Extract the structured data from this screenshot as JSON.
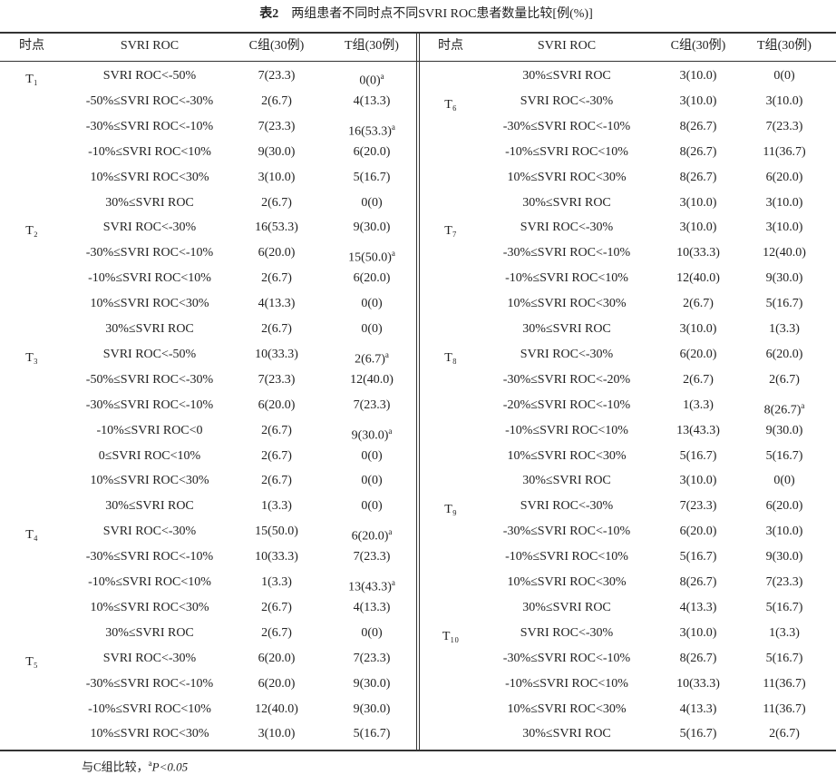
{
  "title": {
    "label": "表2",
    "text": "两组患者不同时点不同SVRI ROC患者数量比较[例(%)]"
  },
  "header": [
    "时点",
    "SVRI ROC",
    "C组(30例)",
    "T组(30例)"
  ],
  "left": [
    {
      "time": "T₁",
      "rows": [
        [
          "SVRI ROC<-50%",
          "7(23.3)",
          "0(0)",
          "a"
        ],
        [
          "-50%≤SVRI ROC<-30%",
          "2(6.7)",
          "4(13.3)"
        ],
        [
          "-30%≤SVRI ROC<-10%",
          "7(23.3)",
          "16(53.3)",
          "a"
        ],
        [
          "-10%≤SVRI ROC<10%",
          "9(30.0)",
          "6(20.0)"
        ],
        [
          "10%≤SVRI ROC<30%",
          "3(10.0)",
          "5(16.7)"
        ],
        [
          "30%≤SVRI ROC",
          "2(6.7)",
          "0(0)"
        ]
      ]
    },
    {
      "time": "T₂",
      "rows": [
        [
          "SVRI ROC<-30%",
          "16(53.3)",
          "9(30.0)"
        ],
        [
          "-30%≤SVRI ROC<-10%",
          "6(20.0)",
          "15(50.0)",
          "a"
        ],
        [
          "-10%≤SVRI ROC<10%",
          "2(6.7)",
          "6(20.0)"
        ],
        [
          "10%≤SVRI ROC<30%",
          "4(13.3)",
          "0(0)"
        ],
        [
          "30%≤SVRI ROC",
          "2(6.7)",
          "0(0)"
        ]
      ]
    },
    {
      "time": "T₃",
      "rows": [
        [
          "SVRI ROC<-50%",
          "10(33.3)",
          "2(6.7)",
          "a"
        ],
        [
          "-50%≤SVRI ROC<-30%",
          "7(23.3)",
          "12(40.0)"
        ],
        [
          "-30%≤SVRI ROC<-10%",
          "6(20.0)",
          "7(23.3)"
        ],
        [
          "-10%≤SVRI ROC<0",
          "2(6.7)",
          "9(30.0)",
          "a"
        ],
        [
          "0≤SVRI ROC<10%",
          "2(6.7)",
          "0(0)"
        ],
        [
          "10%≤SVRI ROC<30%",
          "2(6.7)",
          "0(0)"
        ],
        [
          "30%≤SVRI ROC",
          "1(3.3)",
          "0(0)"
        ]
      ]
    },
    {
      "time": "T₄",
      "rows": [
        [
          "SVRI ROC<-30%",
          "15(50.0)",
          "6(20.0)",
          "a"
        ],
        [
          "-30%≤SVRI ROC<-10%",
          "10(33.3)",
          "7(23.3)"
        ],
        [
          "-10%≤SVRI ROC<10%",
          "1(3.3)",
          "13(43.3)",
          "a"
        ],
        [
          "10%≤SVRI ROC<30%",
          "2(6.7)",
          "4(13.3)"
        ],
        [
          "30%≤SVRI ROC",
          "2(6.7)",
          "0(0)"
        ]
      ]
    },
    {
      "time": "T₅",
      "rows": [
        [
          "SVRI ROC<-30%",
          "6(20.0)",
          "7(23.3)"
        ],
        [
          "-30%≤SVRI ROC<-10%",
          "6(20.0)",
          "9(30.0)"
        ],
        [
          "-10%≤SVRI ROC<10%",
          "12(40.0)",
          "9(30.0)"
        ],
        [
          "10%≤SVRI ROC<30%",
          "3(10.0)",
          "5(16.7)"
        ]
      ]
    }
  ],
  "right": [
    {
      "rows": [
        [
          "30%≤SVRI ROC",
          "3(10.0)",
          "0(0)"
        ]
      ]
    },
    {
      "time": "T₆",
      "rows": [
        [
          "SVRI ROC<-30%",
          "3(10.0)",
          "3(10.0)"
        ],
        [
          "-30%≤SVRI ROC<-10%",
          "8(26.7)",
          "7(23.3)"
        ],
        [
          "-10%≤SVRI ROC<10%",
          "8(26.7)",
          "11(36.7)"
        ],
        [
          "10%≤SVRI ROC<30%",
          "8(26.7)",
          "6(20.0)"
        ],
        [
          "30%≤SVRI ROC",
          "3(10.0)",
          "3(10.0)"
        ]
      ]
    },
    {
      "time": "T₇",
      "rows": [
        [
          "SVRI ROC<-30%",
          "3(10.0)",
          "3(10.0)"
        ],
        [
          "-30%≤SVRI ROC<-10%",
          "10(33.3)",
          "12(40.0)"
        ],
        [
          "-10%≤SVRI ROC<10%",
          "12(40.0)",
          "9(30.0)"
        ],
        [
          "10%≤SVRI ROC<30%",
          "2(6.7)",
          "5(16.7)"
        ],
        [
          "30%≤SVRI ROC",
          "3(10.0)",
          "1(3.3)"
        ]
      ]
    },
    {
      "time": "T₈",
      "rows": [
        [
          "SVRI ROC<-30%",
          "6(20.0)",
          "6(20.0)"
        ],
        [
          "-30%≤SVRI ROC<-20%",
          "2(6.7)",
          "2(6.7)"
        ],
        [
          "-20%≤SVRI ROC<-10%",
          "1(3.3)",
          "8(26.7)",
          "a"
        ],
        [
          "-10%≤SVRI ROC<10%",
          "13(43.3)",
          "9(30.0)"
        ],
        [
          "10%≤SVRI ROC<30%",
          "5(16.7)",
          "5(16.7)"
        ],
        [
          "30%≤SVRI ROC",
          "3(10.0)",
          "0(0)"
        ]
      ]
    },
    {
      "time": "T₉",
      "rows": [
        [
          "SVRI ROC<-30%",
          "7(23.3)",
          "6(20.0)"
        ],
        [
          "-30%≤SVRI ROC<-10%",
          "6(20.0)",
          "3(10.0)"
        ],
        [
          "-10%≤SVRI ROC<10%",
          "5(16.7)",
          "9(30.0)"
        ],
        [
          "10%≤SVRI ROC<30%",
          "8(26.7)",
          "7(23.3)"
        ],
        [
          "30%≤SVRI ROC",
          "4(13.3)",
          "5(16.7)"
        ]
      ]
    },
    {
      "time": "T₁₀",
      "rows": [
        [
          "SVRI ROC<-30%",
          "3(10.0)",
          "1(3.3)"
        ],
        [
          "-30%≤SVRI ROC<-10%",
          "8(26.7)",
          "5(16.7)"
        ],
        [
          "-10%≤SVRI ROC<10%",
          "10(33.3)",
          "11(36.7)"
        ],
        [
          "10%≤SVRI ROC<30%",
          "4(13.3)",
          "11(36.7)"
        ],
        [
          "30%≤SVRI ROC",
          "5(16.7)",
          "2(6.7)"
        ]
      ]
    }
  ],
  "footnote": {
    "text": "与C组比较，",
    "mark": "a",
    "p": "P<0.05"
  }
}
